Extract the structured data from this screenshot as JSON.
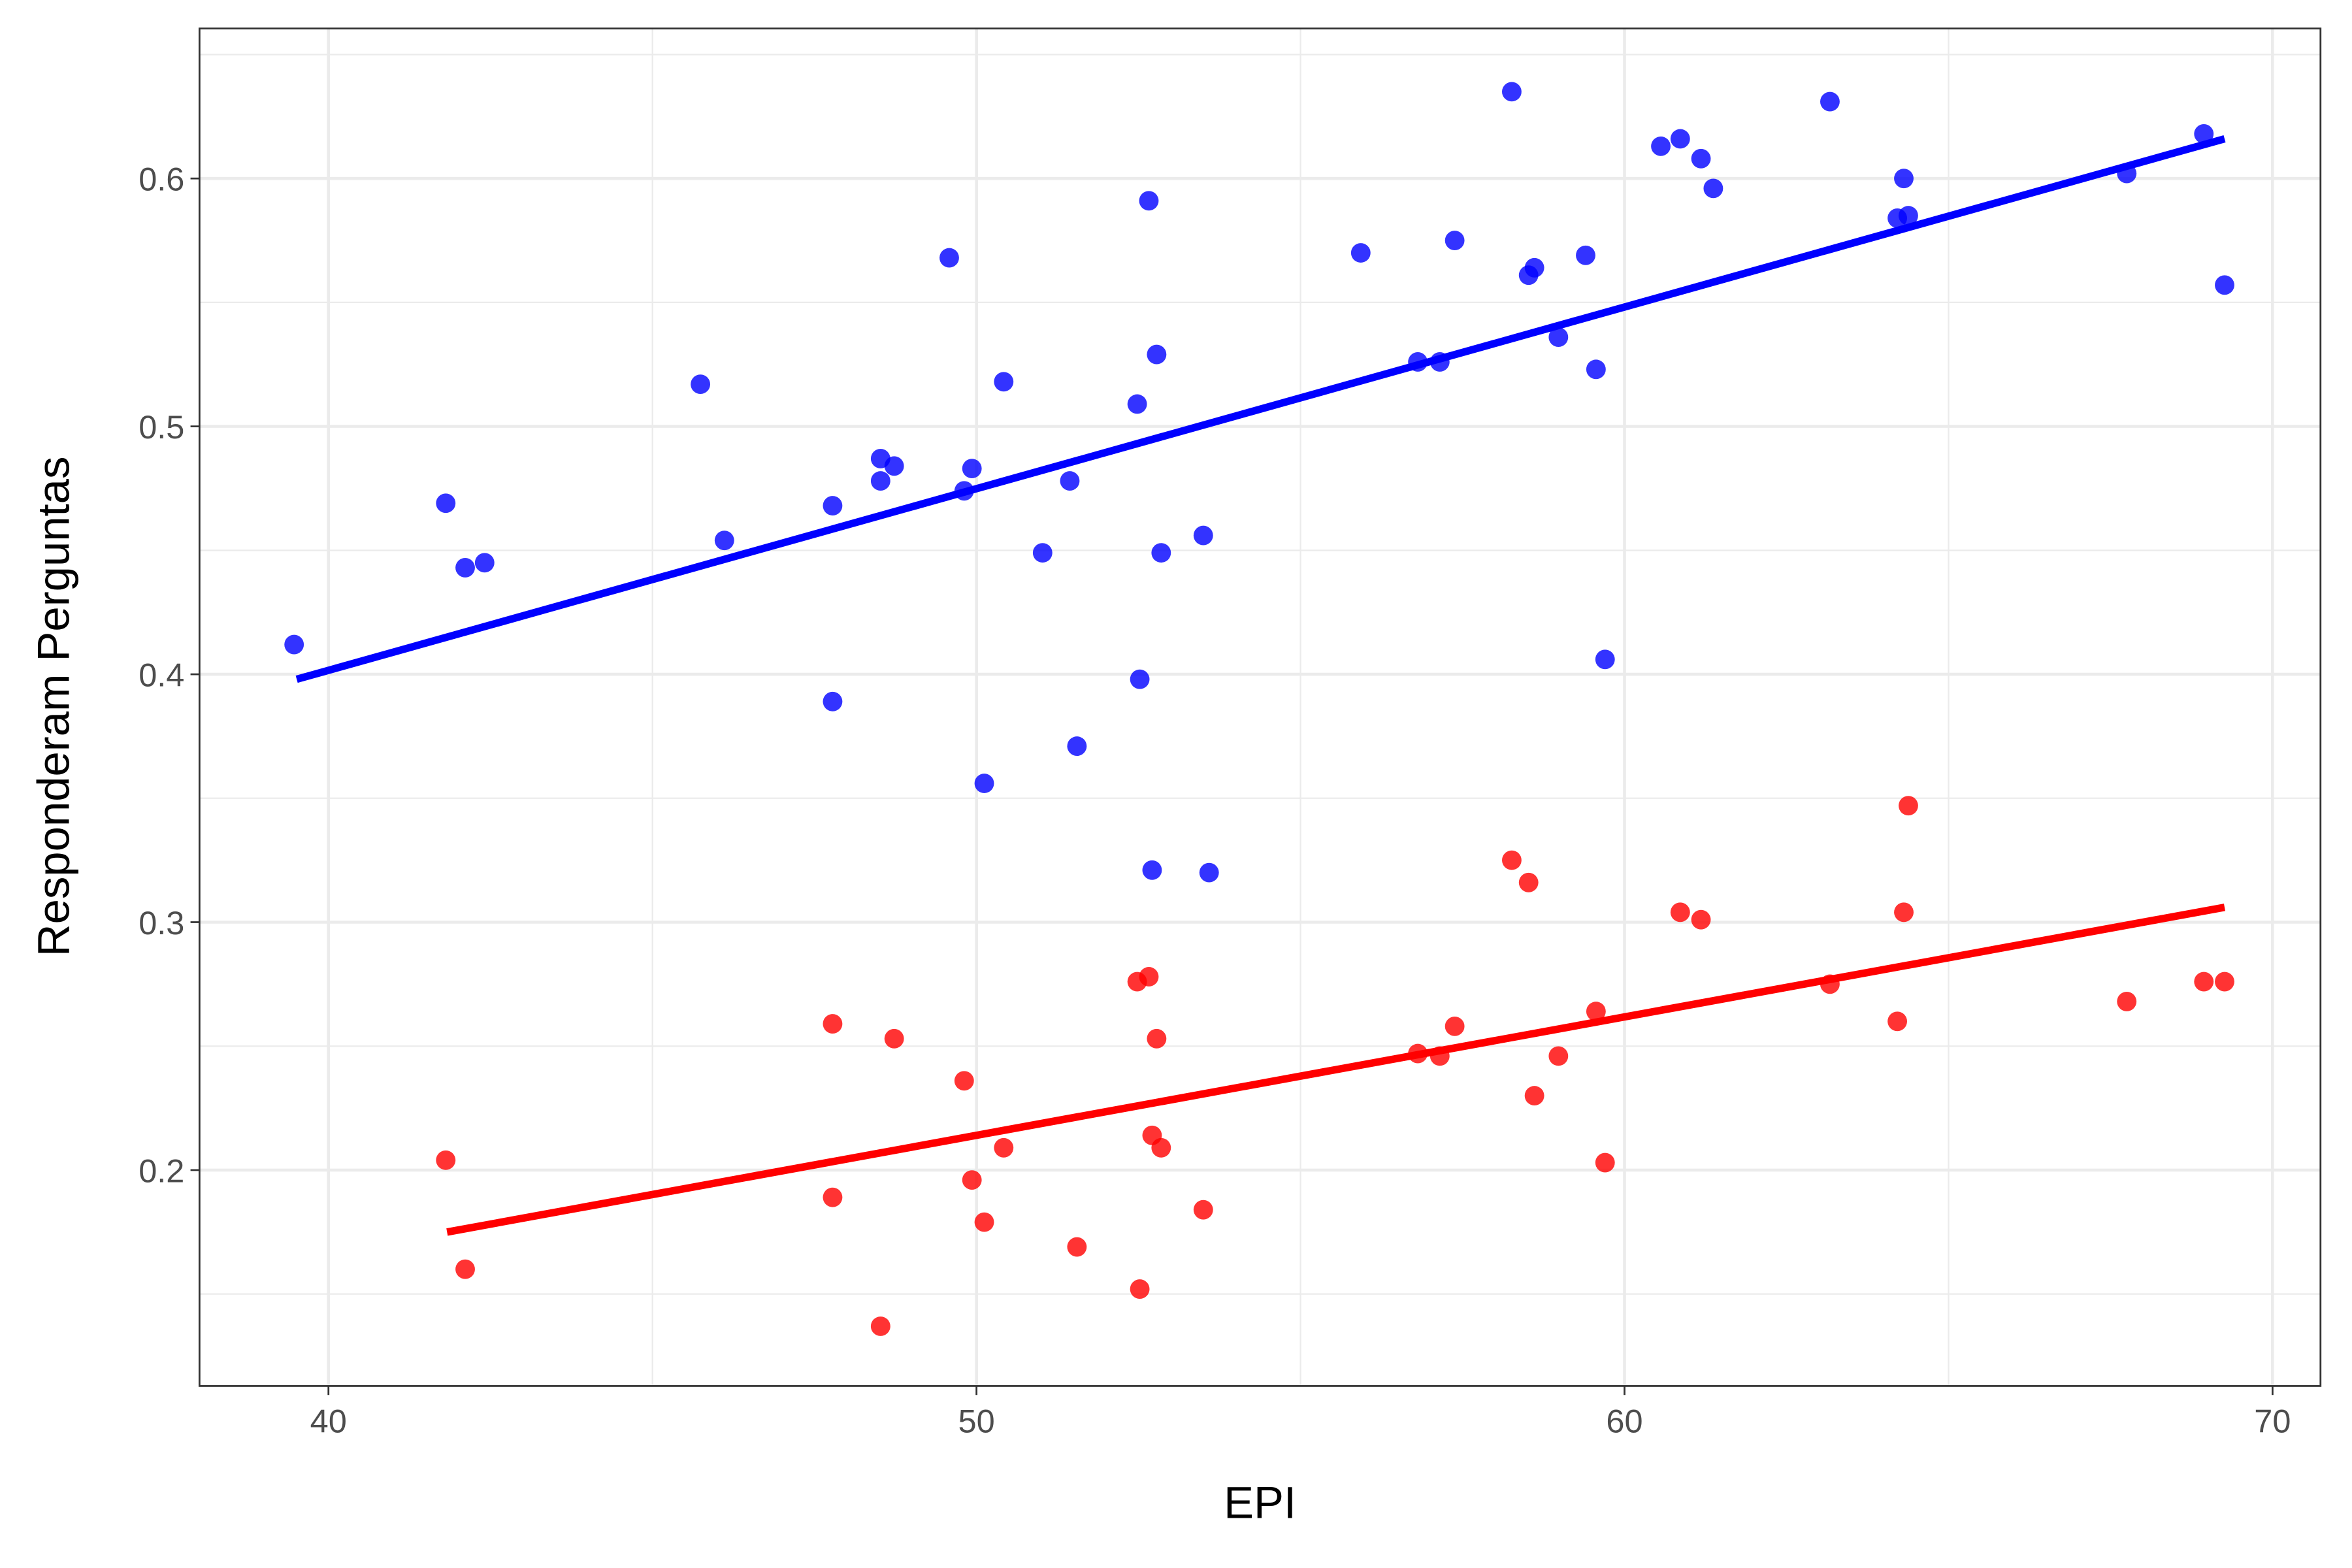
{
  "chart_data": {
    "type": "scatter",
    "x_label": "EPI",
    "y_label": "Responderam Perguntas",
    "xlim": [
      38.01,
      70.74
    ],
    "ylim": [
      0.1129,
      0.6605
    ],
    "xticks": [
      40,
      50,
      60,
      70
    ],
    "yticks": [
      0.2,
      0.3,
      0.4,
      0.5,
      0.6
    ],
    "xminor": [
      45,
      55,
      65
    ],
    "yminor": [
      0.15,
      0.25,
      0.35,
      0.45,
      0.55,
      0.65
    ],
    "grid": true,
    "series": [
      {
        "color": "#0000ff",
        "x": [
          39.47,
          41.81,
          42.11,
          42.41,
          45.74,
          46.11,
          47.78,
          47.78,
          48.52,
          48.52,
          48.73,
          49.58,
          49.81,
          49.93,
          50.12,
          50.42,
          51.02,
          51.44,
          51.55,
          52.48,
          52.52,
          52.66,
          52.71,
          52.78,
          52.85,
          53.5,
          53.59,
          55.93,
          56.81,
          57.15,
          57.38,
          58.26,
          58.52,
          58.61,
          58.98,
          59.4,
          59.56,
          59.7,
          60.56,
          60.86,
          61.18,
          61.37,
          63.17,
          64.21,
          64.31,
          64.38,
          67.75,
          68.94,
          69.26
        ],
        "values": [
          0.412,
          0.469,
          0.443,
          0.445,
          0.517,
          0.454,
          0.468,
          0.389,
          0.487,
          0.478,
          0.484,
          0.568,
          0.474,
          0.483,
          0.356,
          0.518,
          0.449,
          0.478,
          0.371,
          0.509,
          0.398,
          0.591,
          0.321,
          0.529,
          0.449,
          0.456,
          0.32,
          0.57,
          0.526,
          0.526,
          0.575,
          0.635,
          0.561,
          0.564,
          0.536,
          0.569,
          0.523,
          0.406,
          0.613,
          0.616,
          0.608,
          0.596,
          0.631,
          0.584,
          0.6,
          0.585,
          0.602,
          0.618,
          0.557
        ],
        "fit": {
          "x": [
            39.51,
            69.26
          ],
          "values": [
            0.398,
            0.616
          ]
        }
      },
      {
        "color": "#ff0000",
        "x": [
          41.81,
          42.11,
          47.78,
          47.78,
          48.52,
          48.73,
          49.81,
          49.93,
          50.12,
          50.42,
          51.55,
          52.48,
          52.52,
          52.66,
          52.71,
          52.78,
          52.85,
          53.5,
          56.81,
          57.15,
          57.38,
          58.26,
          58.52,
          58.61,
          58.98,
          59.56,
          59.7,
          60.86,
          61.18,
          63.17,
          64.21,
          64.31,
          64.38,
          67.75,
          68.94,
          69.26
        ],
        "values": [
          0.204,
          0.16,
          0.259,
          0.189,
          0.137,
          0.253,
          0.236,
          0.196,
          0.179,
          0.209,
          0.169,
          0.276,
          0.152,
          0.278,
          0.214,
          0.253,
          0.209,
          0.184,
          0.247,
          0.246,
          0.258,
          0.325,
          0.316,
          0.23,
          0.246,
          0.264,
          0.203,
          0.304,
          0.301,
          0.275,
          0.26,
          0.304,
          0.347,
          0.268,
          0.276,
          0.276
        ],
        "fit": {
          "x": [
            41.83,
            69.26
          ],
          "values": [
            0.175,
            0.306
          ]
        }
      }
    ]
  }
}
